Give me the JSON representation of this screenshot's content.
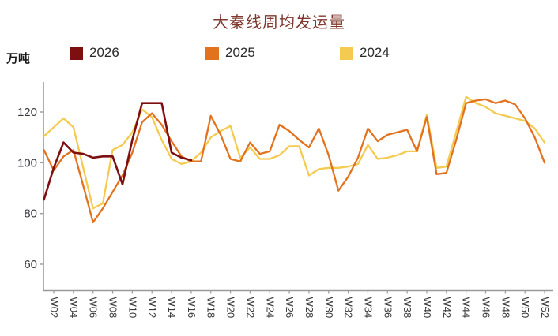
{
  "title": "大秦线周均发运量",
  "unit_label": "万吨",
  "legend": [
    {
      "label": "2026",
      "color": "#7E0F10"
    },
    {
      "label": "2025",
      "color": "#E3721F"
    },
    {
      "label": "2024",
      "color": "#F4CB50"
    }
  ],
  "chart_data": {
    "type": "line",
    "title": "大秦线周均发运量",
    "ylabel_unit": "万吨",
    "yticks": [
      120,
      100,
      80,
      60
    ],
    "ylim": [
      50,
      130
    ],
    "x_tick_labels": [
      "W02",
      "W04",
      "W06",
      "W08",
      "W10",
      "W12",
      "W14",
      "W16",
      "W18",
      "W20",
      "W22",
      "W24",
      "W26",
      "W28",
      "W30",
      "W32",
      "W34",
      "W36",
      "W38",
      "W40",
      "W42",
      "W44",
      "W46",
      "W48",
      "W50",
      "W52"
    ],
    "x_weeks_range": [
      1,
      52
    ],
    "grid": false,
    "legend_position": "top",
    "series": [
      {
        "name": "2024",
        "color": "#F4CB50",
        "start_week": 1,
        "values": [
          110.5,
          114,
          117.5,
          114,
          98,
          82,
          84,
          105,
          107,
          112,
          121,
          118,
          109,
          101.5,
          99.5,
          100.5,
          104,
          110,
          112.5,
          114.5,
          102,
          106,
          101.5,
          101.5,
          103,
          106.5,
          106.5,
          95,
          97.5,
          98,
          98,
          98.5,
          99.5,
          107,
          101.5,
          102,
          103,
          104.5,
          104.5,
          119,
          98,
          98.5,
          112,
          126,
          123.5,
          122,
          119.5,
          118.5,
          117.5,
          116.5,
          113.5,
          108
        ]
      },
      {
        "name": "2025",
        "color": "#E3721F",
        "start_week": 1,
        "values": [
          105,
          97,
          102.5,
          105,
          91,
          76.5,
          82,
          88.5,
          95,
          104,
          116,
          119.5,
          115,
          108.5,
          102.5,
          100.5,
          100.5,
          118.5,
          111,
          101.5,
          100.5,
          108,
          103.5,
          104.5,
          115,
          112.5,
          109,
          106,
          113.5,
          103,
          89,
          94.5,
          102,
          113.5,
          108.5,
          111,
          112,
          113,
          104.5,
          118,
          95.5,
          96,
          109,
          123.5,
          124.5,
          125,
          123.5,
          124.5,
          123,
          117.5,
          110,
          100
        ]
      },
      {
        "name": "2026",
        "color": "#7E0F10",
        "start_week": 1,
        "values": [
          85.5,
          98,
          108,
          104,
          103.5,
          102,
          102.5,
          102.5,
          91.5,
          109,
          123.5,
          123.5,
          123.5,
          104,
          102,
          101
        ]
      }
    ]
  }
}
